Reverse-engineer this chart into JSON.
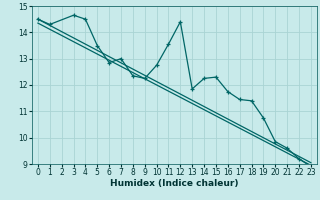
{
  "xlabel": "Humidex (Indice chaleur)",
  "bg_color": "#c8eaea",
  "grid_color": "#aad4d4",
  "line_color": "#006666",
  "xlim": [
    -0.5,
    23.5
  ],
  "ylim": [
    9,
    15
  ],
  "x_ticks": [
    0,
    1,
    2,
    3,
    4,
    5,
    6,
    7,
    8,
    9,
    10,
    11,
    12,
    13,
    14,
    15,
    16,
    17,
    18,
    19,
    20,
    21,
    22,
    23
  ],
  "y_ticks": [
    9,
    10,
    11,
    12,
    13,
    14,
    15
  ],
  "zigzag_x": [
    0,
    1,
    3,
    4,
    5,
    6,
    7,
    8,
    9,
    10,
    11,
    12,
    13,
    14,
    15,
    16,
    17,
    18,
    19,
    20,
    21,
    22,
    23
  ],
  "zigzag_y": [
    14.5,
    14.3,
    14.65,
    14.5,
    13.5,
    12.85,
    13.0,
    12.35,
    12.25,
    12.75,
    13.55,
    14.4,
    11.85,
    12.25,
    12.3,
    11.75,
    11.45,
    11.4,
    10.75,
    9.85,
    9.6,
    9.2,
    8.9
  ],
  "trend1_x": [
    0,
    23
  ],
  "trend1_y": [
    14.5,
    9.05
  ],
  "trend2_x": [
    0,
    23
  ],
  "trend2_y": [
    14.35,
    8.95
  ]
}
